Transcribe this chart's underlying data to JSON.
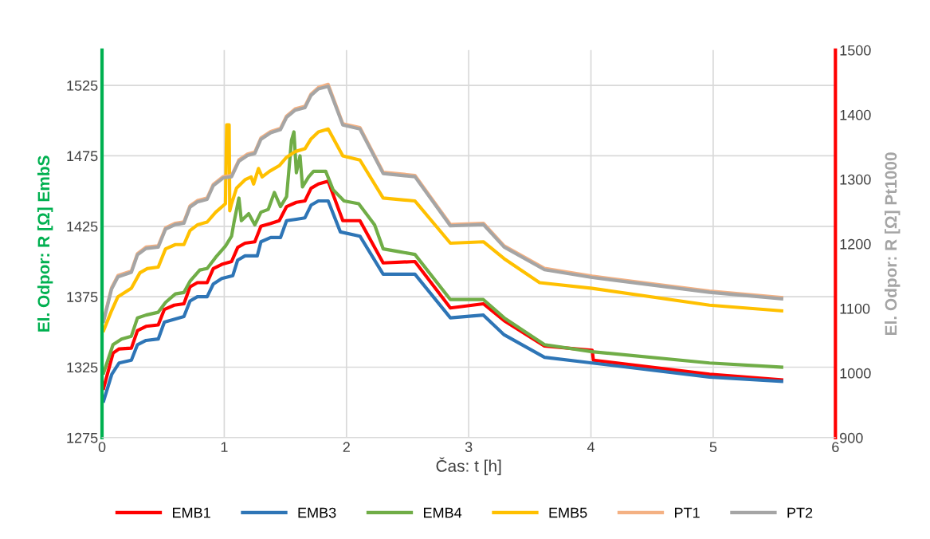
{
  "chart_data": {
    "type": "line",
    "xlabel": "Čas: t [h]",
    "ylabel": "El. Odpor: R [Ω] EmbS",
    "y2label": "El. Odpor: R [Ω] Pt1000",
    "xlim": [
      0,
      6
    ],
    "xticks": [
      0,
      1,
      2,
      3,
      4,
      5,
      6
    ],
    "ylim": [
      1275,
      1550
    ],
    "yticks": [
      1275,
      1325,
      1375,
      1425,
      1475,
      1525
    ],
    "y2lim": [
      900,
      1500
    ],
    "y2ticks": [
      900,
      1000,
      1100,
      1200,
      1300,
      1400,
      1500
    ],
    "grid": true,
    "legend": "bottom",
    "marker": "none",
    "line_style": "solid",
    "series": [
      {
        "name": "EMB1",
        "color": "#ff0000",
        "x": [
          0.013,
          0.09,
          0.14,
          0.24,
          0.29,
          0.36,
          0.46,
          0.51,
          0.59,
          0.67,
          0.72,
          0.78,
          0.86,
          0.91,
          0.98,
          1.06,
          1.11,
          1.17,
          1.25,
          1.3,
          1.38,
          1.45,
          1.51,
          1.59,
          1.66,
          1.71,
          1.77,
          1.85,
          1.97,
          2.11,
          2.3,
          2.56,
          2.85,
          3.12,
          3.29,
          3.62,
          4.01,
          4.02,
          4.97,
          5.56
        ],
        "values": [
          1310,
          1335,
          1338,
          1338.5,
          1351,
          1354,
          1355,
          1366,
          1369,
          1370,
          1382,
          1385,
          1385,
          1395,
          1398,
          1400,
          1410,
          1413,
          1414,
          1425,
          1427,
          1429,
          1439,
          1442,
          1443,
          1452,
          1455,
          1457,
          1429,
          1429,
          1399,
          1400,
          1367,
          1370,
          1358,
          1340,
          1337,
          1330,
          1320,
          1316
        ]
      },
      {
        "name": "EMB3",
        "color": "#2e75b6",
        "x": [
          0.013,
          0.08,
          0.14,
          0.24,
          0.29,
          0.36,
          0.46,
          0.51,
          0.59,
          0.67,
          0.72,
          0.78,
          0.86,
          0.91,
          0.98,
          1.07,
          1.11,
          1.17,
          1.27,
          1.3,
          1.38,
          1.46,
          1.51,
          1.59,
          1.66,
          1.71,
          1.77,
          1.85,
          1.95,
          2.11,
          2.3,
          2.56,
          2.85,
          3.12,
          3.29,
          3.62,
          4.01,
          4.97,
          5.56
        ],
        "values": [
          1301,
          1320,
          1328,
          1330,
          1341,
          1344,
          1345,
          1357,
          1359,
          1361,
          1372,
          1375,
          1375,
          1384,
          1388,
          1390,
          1401,
          1404,
          1404,
          1414,
          1417,
          1417,
          1429,
          1430,
          1431,
          1440,
          1443,
          1443,
          1421,
          1418,
          1391,
          1391,
          1360,
          1362,
          1348,
          1332,
          1328,
          1318,
          1315
        ]
      },
      {
        "name": "EMB4",
        "color": "#70ad47",
        "x": [
          0.013,
          0.09,
          0.16,
          0.24,
          0.29,
          0.36,
          0.46,
          0.52,
          0.6,
          0.67,
          0.72,
          0.8,
          0.86,
          0.93,
          1.01,
          1.06,
          1.08,
          1.12,
          1.14,
          1.2,
          1.25,
          1.3,
          1.36,
          1.41,
          1.46,
          1.51,
          1.55,
          1.57,
          1.59,
          1.62,
          1.64,
          1.69,
          1.73,
          1.83,
          1.89,
          1.98,
          2.1,
          2.23,
          2.3,
          2.43,
          2.56,
          2.85,
          3.12,
          3.29,
          3.62,
          4.01,
          4.97,
          5.56
        ],
        "values": [
          1321,
          1341,
          1345,
          1347,
          1360,
          1362,
          1364,
          1371,
          1377,
          1378,
          1386,
          1394,
          1395,
          1403,
          1411,
          1418,
          1428,
          1445,
          1429,
          1434,
          1426,
          1435,
          1437,
          1449,
          1439,
          1446,
          1486,
          1492,
          1463,
          1475,
          1453,
          1460,
          1464,
          1464,
          1451,
          1443,
          1441,
          1426,
          1409,
          1407,
          1405,
          1373,
          1373,
          1360,
          1341,
          1336,
          1328,
          1325
        ]
      },
      {
        "name": "EMB5",
        "color": "#ffc000",
        "x": [
          0.013,
          0.078,
          0.13,
          0.24,
          0.31,
          0.37,
          0.46,
          0.52,
          0.6,
          0.67,
          0.72,
          0.78,
          0.86,
          0.93,
          1.01,
          1.02,
          1.04,
          1.045,
          1.06,
          1.1,
          1.17,
          1.22,
          1.24,
          1.28,
          1.31,
          1.37,
          1.45,
          1.51,
          1.58,
          1.66,
          1.71,
          1.77,
          1.85,
          1.97,
          2.11,
          2.3,
          2.56,
          2.85,
          3.12,
          3.29,
          3.58,
          4.01,
          4.97,
          5.56
        ],
        "values": [
          1351,
          1365,
          1375,
          1381,
          1392,
          1395,
          1396,
          1409,
          1412,
          1412,
          1422,
          1426,
          1428,
          1435,
          1441,
          1497,
          1497,
          1436,
          1441,
          1452,
          1458,
          1460,
          1455,
          1466,
          1460,
          1464,
          1468,
          1474,
          1478,
          1480,
          1487,
          1492,
          1494,
          1475,
          1472,
          1445,
          1443,
          1413,
          1414,
          1402,
          1385,
          1381,
          1369,
          1365
        ]
      },
      {
        "name": "PT1",
        "color": "#f4b183",
        "axis": "y2",
        "x": [
          0.013,
          0.078,
          0.13,
          0.24,
          0.29,
          0.36,
          0.46,
          0.52,
          0.6,
          0.67,
          0.72,
          0.78,
          0.86,
          0.91,
          0.99,
          1.06,
          1.12,
          1.19,
          1.25,
          1.3,
          1.38,
          1.46,
          1.51,
          1.58,
          1.66,
          1.71,
          1.77,
          1.85,
          1.97,
          2.11,
          2.3,
          2.56,
          2.85,
          3.12,
          3.29,
          3.62,
          4.01,
          4.97,
          5.56
        ],
        "values": [
          1082,
          1132,
          1151,
          1158,
          1185,
          1195,
          1197,
          1225,
          1232,
          1234,
          1259,
          1267,
          1271,
          1292,
          1304,
          1306,
          1330,
          1339,
          1342,
          1364,
          1374,
          1379,
          1398,
          1409,
          1413,
          1432,
          1442,
          1447,
          1386,
          1380,
          1311,
          1306,
          1230,
          1232,
          1197,
          1162,
          1150,
          1127,
          1117
        ]
      },
      {
        "name": "PT2",
        "color": "#a5a5a5",
        "axis": "y2",
        "x": [
          0.013,
          0.078,
          0.13,
          0.24,
          0.29,
          0.36,
          0.46,
          0.52,
          0.6,
          0.67,
          0.72,
          0.78,
          0.86,
          0.91,
          0.99,
          1.06,
          1.12,
          1.19,
          1.25,
          1.3,
          1.38,
          1.46,
          1.51,
          1.58,
          1.66,
          1.71,
          1.77,
          1.85,
          1.97,
          2.11,
          2.3,
          2.56,
          2.85,
          3.12,
          3.29,
          3.62,
          4.01,
          4.97,
          5.56
        ],
        "values": [
          1080,
          1130,
          1149,
          1156,
          1183,
          1193,
          1195,
          1223,
          1230,
          1232,
          1257,
          1265,
          1269,
          1290,
          1302,
          1304,
          1328,
          1337,
          1340,
          1362,
          1372,
          1377,
          1396,
          1407,
          1411,
          1430,
          1440,
          1444,
          1384,
          1378,
          1309,
          1304,
          1228,
          1230,
          1195,
          1160,
          1148,
          1125,
          1115
        ]
      }
    ]
  }
}
